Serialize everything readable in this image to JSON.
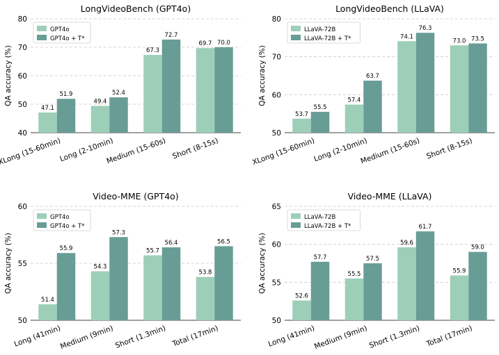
{
  "colors": {
    "base": "#9dcfb8",
    "tstar": "#689d96",
    "grid": "#c8c8c8"
  },
  "chart_data": [
    {
      "type": "bar",
      "title": "LongVideoBench (GPT4o)",
      "xlabel": "",
      "ylabel": "QA accuracy (%)",
      "ylim": [
        40,
        80
      ],
      "yticks": [
        40,
        50,
        60,
        70,
        80
      ],
      "grid": true,
      "legend_position": "top-left",
      "categories": [
        "XLong (15-60min)",
        "Long (2-10min)",
        "Medium (15-60s)",
        "Short (8-15s)"
      ],
      "series": [
        {
          "name": "GPT4o",
          "color": "#9dcfb8",
          "values": [
            47.1,
            49.4,
            67.3,
            69.7
          ],
          "labels": [
            "47.1",
            "49.4",
            "67.3",
            "69.7"
          ]
        },
        {
          "name": "GPT4o + T*",
          "color": "#689d96",
          "values": [
            51.9,
            52.4,
            72.7,
            70.0
          ],
          "labels": [
            "51.9",
            "52.4",
            "72.7",
            "70.0"
          ]
        }
      ]
    },
    {
      "type": "bar",
      "title": "LongVideoBench (LLaVA)",
      "xlabel": "",
      "ylabel": "QA accuracy (%)",
      "ylim": [
        50,
        80
      ],
      "yticks": [
        50,
        60,
        70,
        80
      ],
      "grid": true,
      "legend_position": "top-left",
      "categories": [
        "XLong (15-60min)",
        "Long (2-10min)",
        "Medium (15-60s)",
        "Short (8-15s)"
      ],
      "series": [
        {
          "name": "LLaVA-72B",
          "color": "#9dcfb8",
          "values": [
            53.7,
            57.4,
            74.1,
            73.0
          ],
          "labels": [
            "53.7",
            "57.4",
            "74.1",
            "73.0"
          ]
        },
        {
          "name": "LLaVA-72B + T*",
          "color": "#689d96",
          "values": [
            55.5,
            63.7,
            76.3,
            73.5
          ],
          "labels": [
            "55.5",
            "63.7",
            "76.3",
            "73.5"
          ]
        }
      ]
    },
    {
      "type": "bar",
      "title": "Video-MME (GPT4o)",
      "xlabel": "",
      "ylabel": "QA accuracy (%)",
      "ylim": [
        50,
        60
      ],
      "yticks": [
        50,
        55,
        60
      ],
      "grid": true,
      "legend_position": "top-left",
      "categories": [
        "Long (41min)",
        "Medium (9min)",
        "Short (1.3min)",
        "Total (17min)"
      ],
      "series": [
        {
          "name": "GPT4o",
          "color": "#9dcfb8",
          "values": [
            51.4,
            54.3,
            55.7,
            53.8
          ],
          "labels": [
            "51.4",
            "54.3",
            "55.7",
            "53.8"
          ]
        },
        {
          "name": "GPT4o + T*",
          "color": "#689d96",
          "values": [
            55.9,
            57.3,
            56.4,
            56.5
          ],
          "labels": [
            "55.9",
            "57.3",
            "56.4",
            "56.5"
          ]
        }
      ]
    },
    {
      "type": "bar",
      "title": "Video-MME (LLaVA)",
      "xlabel": "",
      "ylabel": "QA accuracy (%)",
      "ylim": [
        50,
        65
      ],
      "yticks": [
        50,
        55,
        60,
        65
      ],
      "grid": true,
      "legend_position": "top-left",
      "categories": [
        "Long (41min)",
        "Medium (9min)",
        "Short (1.3min)",
        "Total (17min)"
      ],
      "series": [
        {
          "name": "LLaVA-72B",
          "color": "#9dcfb8",
          "values": [
            52.6,
            55.5,
            59.6,
            55.9
          ],
          "labels": [
            "52.6",
            "55.5",
            "59.6",
            "55.9"
          ]
        },
        {
          "name": "LLaVA-72B + T*",
          "color": "#689d96",
          "values": [
            57.7,
            57.5,
            61.7,
            59.0
          ],
          "labels": [
            "57.7",
            "57.5",
            "61.7",
            "59.0"
          ]
        }
      ]
    }
  ]
}
